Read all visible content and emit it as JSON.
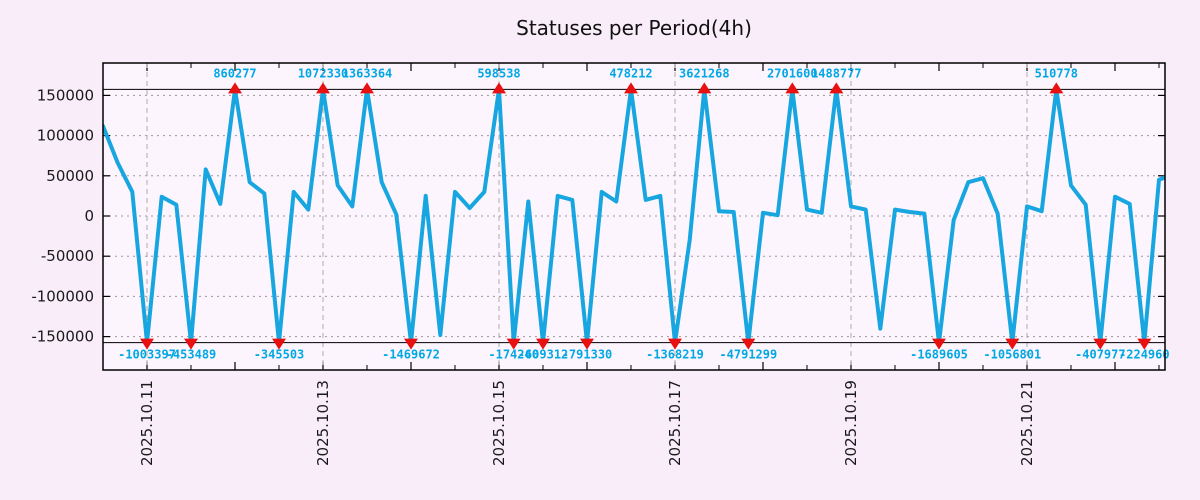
{
  "chart_data": {
    "type": "line",
    "title": "Statuses per Period(4h)",
    "period": "4h",
    "x_tick_labels": [
      "2025.10.11",
      "2025.10.13",
      "2025.10.15",
      "2025.10.17",
      "2025.10.19",
      "2025.10.21"
    ],
    "x_label_every_days": 2,
    "x_first_tick_index": 3,
    "points_per_day": 6,
    "y_ticks": [
      150000,
      100000,
      50000,
      0,
      -50000,
      -100000,
      -150000
    ],
    "y_range_displayed": [
      -157500,
      157500
    ],
    "clip_value": 157500,
    "grid": "dotted horizontal lines at every y tick, dashed vertical lines at labeled days",
    "legend": "none",
    "values": [
      112000,
      66000,
      30000,
      -1003397,
      24000,
      14000,
      -453489,
      58000,
      15000,
      860277,
      42000,
      28000,
      -345503,
      30000,
      8000,
      1072330,
      38000,
      12000,
      1363364,
      42000,
      2000,
      -1469672,
      25000,
      -148000,
      30000,
      10000,
      30000,
      598538,
      -174240,
      18000,
      -609312,
      25000,
      20000,
      -791330,
      30000,
      18000,
      478212,
      20000,
      25000,
      -1368219,
      -30000,
      3621268,
      6000,
      5000,
      -4791299,
      4000,
      1000,
      2701600,
      8000,
      4000,
      1488777,
      12000,
      8000,
      -140000,
      8000,
      5000,
      3000,
      -1689605,
      -5000,
      42000,
      47000,
      3000,
      -1056801,
      12000,
      6000,
      510778,
      38000,
      14000,
      -407977,
      24000,
      15000,
      -224960,
      45000,
      52000
    ],
    "annotated_extremes": {
      "peaks": [
        860277,
        1072330,
        1363364,
        598538,
        478212,
        3621268,
        2701600,
        1488777,
        510778
      ],
      "troughs": [
        -1003397,
        -453489,
        -345503,
        -1469672,
        -174240,
        -609312,
        -791330,
        -1368219,
        -4791299,
        -1689605,
        -1056801,
        -407977,
        -224960
      ]
    },
    "colors": {
      "line": "#18a6e0",
      "extreme_label": "#00a8e6",
      "marker": "#e81010",
      "plot_background": "#fdf5fd",
      "page_background": "#f8edf8",
      "frame": "#000000",
      "grid": "#999999",
      "day_grid": "#aaaaaa",
      "tick_label": "#1a1a1a"
    }
  }
}
